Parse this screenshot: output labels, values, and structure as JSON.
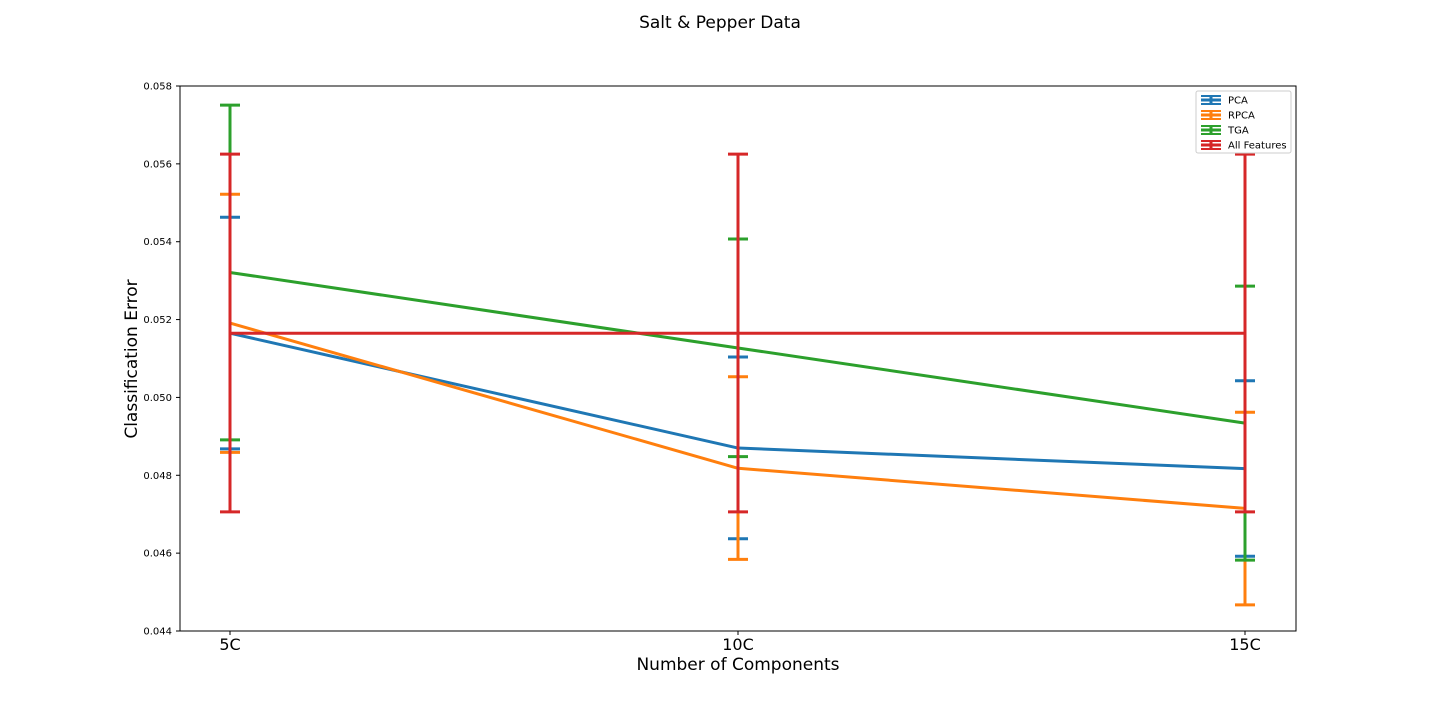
{
  "chart_data": {
    "type": "line",
    "title": "Salt & Pepper Data",
    "xlabel": "Number of Components",
    "ylabel": "Classification Error",
    "categories": [
      "5C",
      "10C",
      "15C"
    ],
    "ylim": [
      0.044,
      0.058
    ],
    "yticks": [
      "0.044",
      "0.046",
      "0.048",
      "0.050",
      "0.052",
      "0.054",
      "0.056",
      "0.058"
    ],
    "error_bars": true,
    "legend_position": "top-right",
    "grid": false,
    "series": [
      {
        "name": "PCA",
        "color": "#1f77b4",
        "values": [
          0.05165,
          0.0487,
          0.04817
        ],
        "lower": [
          0.04868,
          0.04637,
          0.04592
        ],
        "upper": [
          0.05463,
          0.05104,
          0.05043
        ]
      },
      {
        "name": "RPCA",
        "color": "#ff7f0e",
        "values": [
          0.05191,
          0.04818,
          0.04715
        ],
        "lower": [
          0.04859,
          0.04584,
          0.04467
        ],
        "upper": [
          0.05522,
          0.05053,
          0.04962
        ]
      },
      {
        "name": "TGA",
        "color": "#2ca02c",
        "values": [
          0.05321,
          0.05127,
          0.04934
        ],
        "lower": [
          0.04891,
          0.04848,
          0.04582
        ],
        "upper": [
          0.05751,
          0.05407,
          0.05286
        ]
      },
      {
        "name": "All Features",
        "color": "#d62728",
        "values": [
          0.05165,
          0.05165,
          0.05165
        ],
        "lower": [
          0.04706,
          0.04706,
          0.04706
        ],
        "upper": [
          0.05625,
          0.05625,
          0.05625
        ]
      }
    ]
  }
}
